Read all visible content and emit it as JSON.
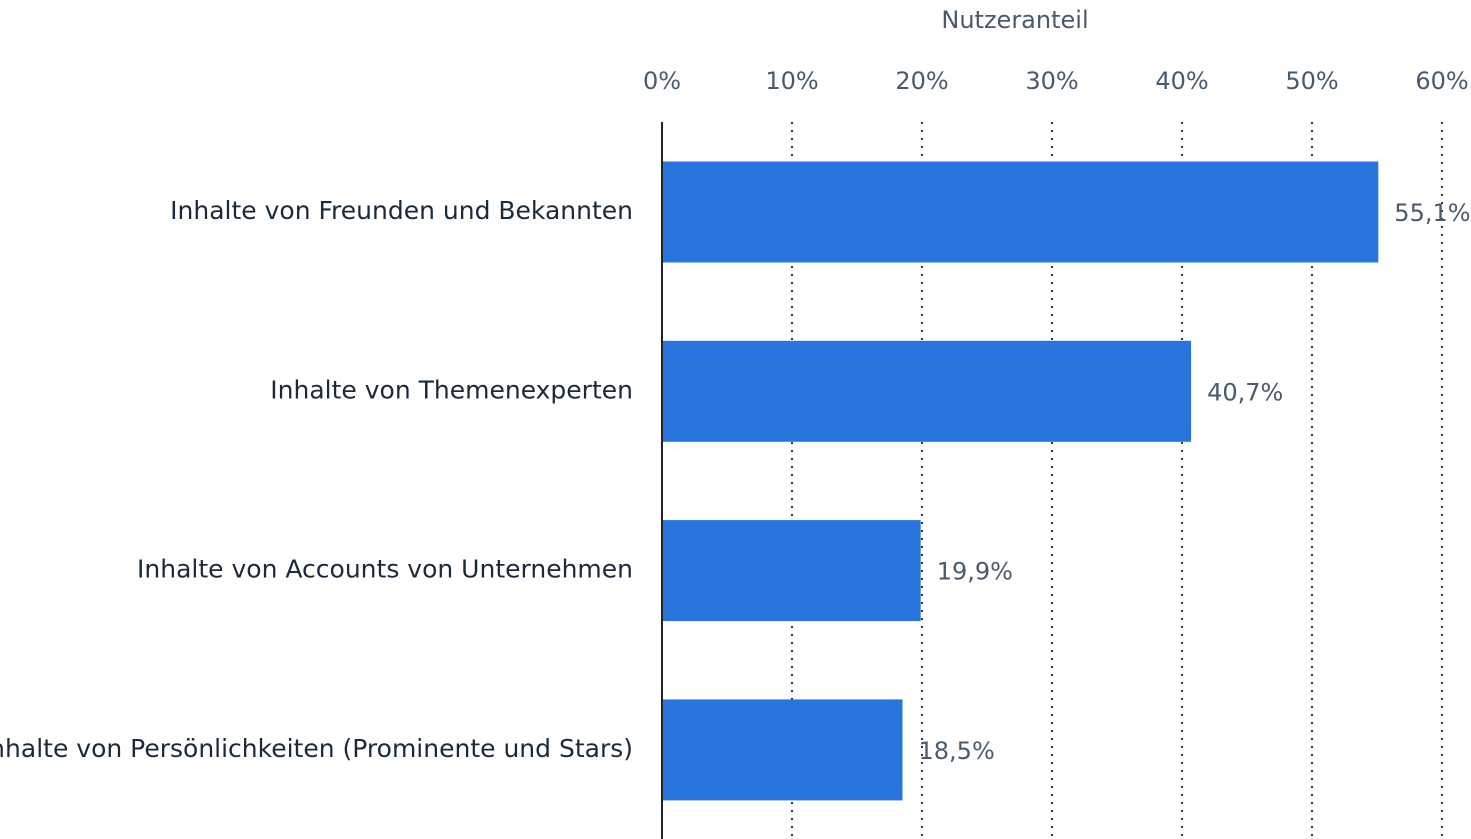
{
  "chart_data": {
    "type": "hbar",
    "xlabel": "Nutzeranteil",
    "categories": [
      "Inhalte von Freunden und Bekannten",
      "Inhalte von Themenexperten",
      "Inhalte von Accounts von Unternehmen",
      "Inhalte von Persönlichkeiten (Prominente und Stars)"
    ],
    "values": [
      55.1,
      40.7,
      19.9,
      18.5
    ],
    "value_labels": [
      "55,1%",
      "40,7%",
      "19,9%",
      "18,5%"
    ],
    "color": "#2876dd",
    "xlim": [
      0,
      60
    ],
    "xticks": [
      {
        "value": 0,
        "label": "0%"
      },
      {
        "value": 10,
        "label": "10%"
      },
      {
        "value": 20,
        "label": "20%"
      },
      {
        "value": 30,
        "label": "30%"
      },
      {
        "value": 40,
        "label": "40%"
      },
      {
        "value": 50,
        "label": "50%"
      },
      {
        "value": 60,
        "label": "60%"
      }
    ],
    "grid": true
  }
}
